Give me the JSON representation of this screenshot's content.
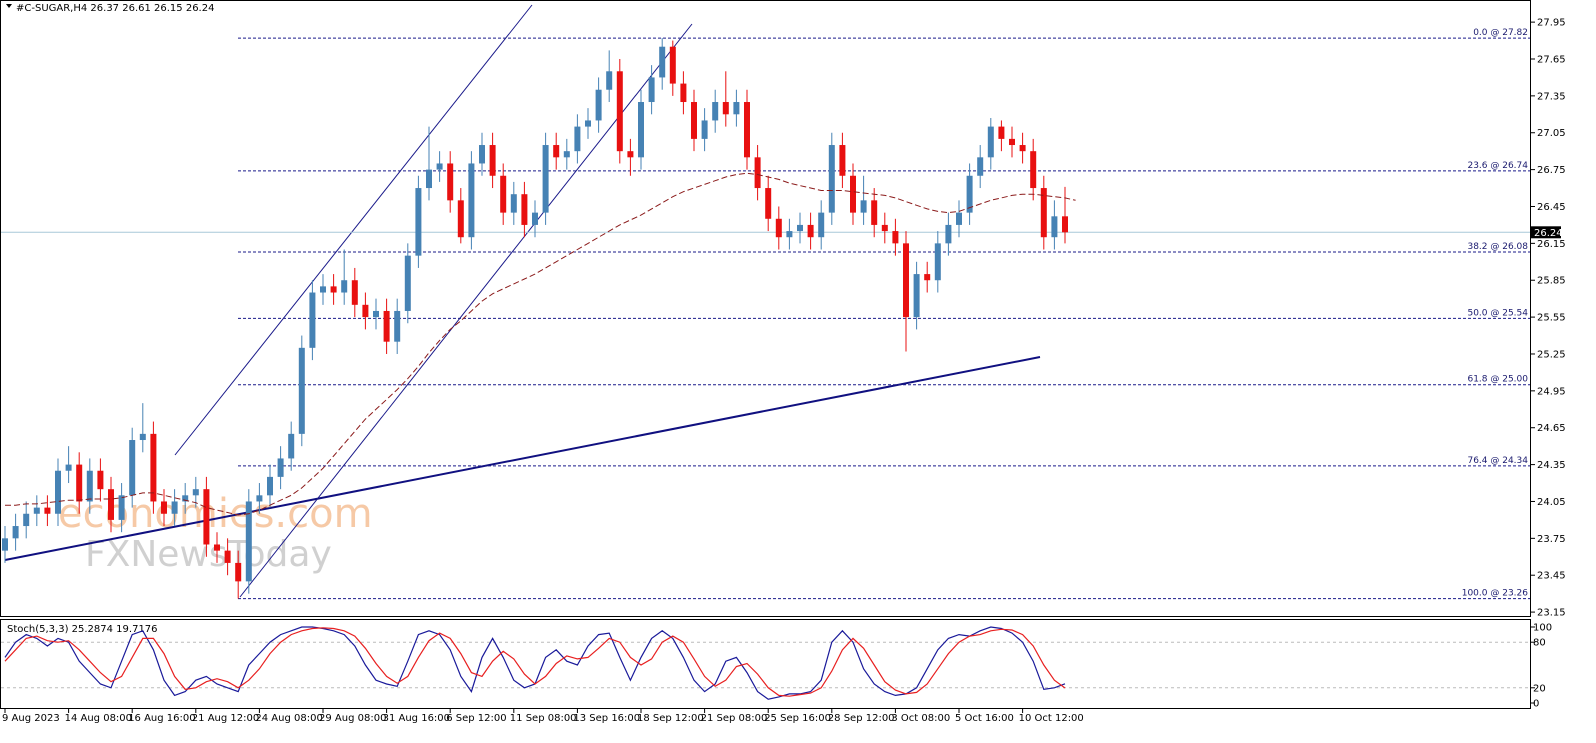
{
  "header": "#C-SUGAR,H4  26.37 26.61 26.15 26.24",
  "watermark": {
    "line1": "economies.com",
    "line2": "FXNewsToday"
  },
  "chart_data": [
    {
      "type": "candlestick",
      "categories": [
        "9 Aug 2023",
        null,
        null,
        null,
        null,
        null,
        "14 Aug 08:00",
        null,
        null,
        null,
        null,
        null,
        "16 Aug 16:00",
        null,
        null,
        null,
        null,
        null,
        "21 Aug 12:00",
        null,
        null,
        null,
        null,
        null,
        "24 Aug 08:00",
        null,
        null,
        null,
        null,
        null,
        "29 Aug 08:00",
        null,
        null,
        null,
        null,
        null,
        "31 Aug 16:00",
        null,
        null,
        null,
        null,
        null,
        "6 Sep 12:00",
        null,
        null,
        null,
        null,
        null,
        "11 Sep 08:00",
        null,
        null,
        null,
        null,
        null,
        "13 Sep 16:00",
        null,
        null,
        null,
        null,
        null,
        "18 Sep 12:00",
        null,
        null,
        null,
        null,
        null,
        "21 Sep 08:00",
        null,
        null,
        null,
        null,
        null,
        "25 Sep 16:00",
        null,
        null,
        null,
        null,
        null,
        "28 Sep 12:00",
        null,
        null,
        null,
        null,
        null,
        "3 Oct 08:00",
        null,
        null,
        null,
        null,
        null,
        "5 Oct 16:00",
        null,
        null,
        null,
        null,
        null,
        "10 Oct 12:00",
        null,
        null,
        null,
        null
      ],
      "open": [
        23.65,
        23.75,
        23.85,
        23.95,
        24.0,
        23.95,
        24.3,
        24.35,
        24.05,
        24.3,
        24.15,
        23.9,
        24.1,
        24.55,
        24.6,
        24.05,
        23.95,
        24.05,
        24.1,
        24.15,
        23.7,
        23.65,
        23.55,
        23.4,
        24.05,
        24.1,
        24.25,
        24.4,
        24.6,
        25.3,
        25.75,
        25.8,
        25.75,
        25.85,
        25.65,
        25.55,
        25.6,
        25.35,
        25.6,
        26.05,
        26.6,
        26.75,
        26.8,
        26.5,
        26.2,
        26.8,
        26.95,
        26.7,
        26.4,
        26.55,
        26.3,
        26.4,
        26.95,
        26.85,
        26.9,
        27.1,
        27.15,
        27.4,
        27.55,
        26.9,
        26.85,
        27.3,
        27.5,
        27.75,
        27.45,
        27.3,
        27.0,
        27.15,
        27.3,
        27.2,
        27.3,
        26.85,
        26.6,
        26.35,
        26.2,
        26.25,
        26.3,
        26.2,
        26.4,
        26.95,
        26.7,
        26.4,
        26.5,
        26.3,
        26.25,
        26.15,
        25.55,
        25.9,
        25.85,
        26.15,
        26.3,
        26.4,
        26.7,
        26.85,
        27.1,
        27.0,
        26.95,
        26.9,
        26.6,
        26.2,
        26.37
      ],
      "high": [
        23.85,
        23.95,
        24.05,
        24.1,
        24.1,
        24.4,
        24.5,
        24.45,
        24.4,
        24.4,
        24.25,
        24.2,
        24.65,
        24.85,
        24.7,
        24.15,
        24.15,
        24.2,
        24.25,
        24.25,
        23.8,
        23.75,
        23.65,
        24.15,
        24.2,
        24.35,
        24.5,
        24.7,
        25.4,
        25.85,
        25.9,
        25.9,
        26.1,
        25.95,
        25.75,
        25.7,
        25.7,
        25.7,
        26.15,
        26.7,
        27.1,
        26.9,
        26.9,
        26.6,
        26.9,
        27.05,
        27.05,
        26.8,
        26.65,
        26.65,
        26.5,
        27.05,
        27.05,
        27.0,
        27.2,
        27.25,
        27.5,
        27.72,
        27.65,
        27.0,
        27.4,
        27.6,
        27.82,
        27.8,
        27.55,
        27.4,
        27.25,
        27.4,
        27.55,
        27.4,
        27.4,
        26.95,
        26.7,
        26.45,
        26.35,
        26.4,
        26.4,
        26.5,
        27.05,
        27.05,
        26.8,
        26.7,
        26.6,
        26.4,
        26.35,
        26.25,
        26.0,
        26.0,
        26.25,
        26.4,
        26.5,
        26.8,
        26.95,
        27.17,
        27.15,
        27.1,
        27.05,
        27.0,
        26.7,
        26.5,
        26.61
      ],
      "low": [
        23.55,
        23.65,
        23.75,
        23.85,
        23.85,
        23.85,
        24.2,
        23.95,
        23.95,
        24.05,
        23.8,
        23.8,
        24.0,
        24.45,
        23.95,
        23.85,
        23.85,
        23.95,
        24.0,
        23.6,
        23.55,
        23.45,
        23.26,
        23.3,
        23.95,
        24.0,
        24.15,
        24.3,
        24.5,
        25.2,
        25.65,
        25.65,
        25.65,
        25.55,
        25.45,
        25.45,
        25.25,
        25.25,
        25.5,
        25.95,
        26.5,
        26.65,
        26.4,
        26.15,
        26.1,
        26.7,
        26.6,
        26.3,
        26.3,
        26.2,
        26.2,
        26.3,
        26.75,
        26.75,
        26.8,
        27.0,
        27.05,
        27.3,
        26.8,
        26.7,
        26.75,
        27.2,
        27.4,
        27.35,
        27.2,
        26.9,
        26.9,
        27.05,
        27.1,
        27.1,
        26.75,
        26.5,
        26.25,
        26.1,
        26.1,
        26.15,
        26.1,
        26.1,
        26.3,
        26.6,
        26.3,
        26.3,
        26.2,
        26.15,
        26.05,
        25.27,
        25.45,
        25.75,
        25.75,
        26.05,
        26.2,
        26.3,
        26.6,
        26.75,
        26.9,
        26.85,
        26.8,
        26.5,
        26.1,
        26.1,
        26.15
      ],
      "close": [
        23.75,
        23.85,
        23.95,
        24.0,
        23.95,
        24.3,
        24.35,
        24.05,
        24.3,
        24.15,
        23.9,
        24.1,
        24.55,
        24.6,
        24.05,
        23.95,
        24.05,
        24.1,
        24.15,
        23.7,
        23.65,
        23.55,
        23.4,
        24.05,
        24.1,
        24.25,
        24.4,
        24.6,
        25.3,
        25.75,
        25.8,
        25.75,
        25.85,
        25.65,
        25.55,
        25.6,
        25.35,
        25.6,
        26.05,
        26.6,
        26.75,
        26.8,
        26.5,
        26.2,
        26.8,
        26.95,
        26.7,
        26.4,
        26.55,
        26.3,
        26.4,
        26.95,
        26.85,
        26.9,
        27.1,
        27.15,
        27.4,
        27.55,
        26.9,
        26.85,
        27.3,
        27.5,
        27.75,
        27.45,
        27.3,
        27.0,
        27.15,
        27.3,
        27.2,
        27.3,
        26.85,
        26.6,
        26.35,
        26.2,
        26.25,
        26.3,
        26.2,
        26.4,
        26.95,
        26.7,
        26.4,
        26.5,
        26.3,
        26.25,
        26.15,
        25.55,
        25.9,
        25.85,
        26.15,
        26.3,
        26.4,
        26.7,
        26.85,
        27.1,
        27.0,
        26.95,
        26.9,
        26.6,
        26.2,
        26.37,
        26.24
      ],
      "ma": [
        24.02,
        24.02,
        24.03,
        24.03,
        24.04,
        24.05,
        24.06,
        24.06,
        24.07,
        24.07,
        24.07,
        24.08,
        24.1,
        24.12,
        24.12,
        24.1,
        24.08,
        24.06,
        24.04,
        24.0,
        23.98,
        23.96,
        23.94,
        23.95,
        23.98,
        24.02,
        24.06,
        24.1,
        24.16,
        24.24,
        24.32,
        24.42,
        24.52,
        24.62,
        24.72,
        24.8,
        24.88,
        24.96,
        25.05,
        25.15,
        25.26,
        25.36,
        25.45,
        25.52,
        25.6,
        25.68,
        25.74,
        25.78,
        25.82,
        25.86,
        25.9,
        25.95,
        26.0,
        26.05,
        26.1,
        26.15,
        26.2,
        26.25,
        26.3,
        26.34,
        26.38,
        26.43,
        26.48,
        26.53,
        26.57,
        26.6,
        26.63,
        26.66,
        26.69,
        26.71,
        26.72,
        26.71,
        26.69,
        26.67,
        26.64,
        26.62,
        26.6,
        26.58,
        26.58,
        26.58,
        26.57,
        26.56,
        26.55,
        26.54,
        26.52,
        26.49,
        26.46,
        26.43,
        26.41,
        26.4,
        26.41,
        26.44,
        26.47,
        26.5,
        26.52,
        26.54,
        26.55,
        26.55,
        26.54,
        26.53,
        26.52,
        26.5
      ],
      "up_color": "#4682b4",
      "down_color": "#e81010",
      "ma_color": "#8b1a1a",
      "current_price": 26.24,
      "fib_levels": [
        {
          "value": 27.82,
          "label": "0.0 @ 27.82"
        },
        {
          "value": 26.74,
          "label": "23.6 @ 26.74"
        },
        {
          "value": 26.08,
          "label": "38.2 @ 26.08"
        },
        {
          "value": 25.54,
          "label": "50.0 @ 25.54"
        },
        {
          "value": 25.0,
          "label": "61.8 @ 25.00"
        },
        {
          "value": 24.34,
          "label": "76.4 @ 24.34"
        },
        {
          "value": 23.26,
          "label": "100.0 @ 23.26"
        }
      ],
      "ylim": [
        23.11,
        28.13
      ],
      "yticks": [
        27.95,
        27.65,
        27.35,
        27.05,
        26.75,
        26.45,
        26.15,
        25.85,
        25.55,
        25.25,
        24.95,
        24.65,
        24.35,
        24.05,
        23.75,
        23.45,
        23.15
      ]
    },
    {
      "type": "line",
      "title": "Stoch(5,3,3) 25.2874 19.7176",
      "series": [
        {
          "color": "#1a1a9a",
          "values": [
            60,
            80,
            90,
            85,
            75,
            85,
            80,
            55,
            40,
            25,
            20,
            55,
            90,
            95,
            70,
            30,
            10,
            15,
            30,
            35,
            25,
            20,
            15,
            50,
            65,
            80,
            90,
            95,
            100,
            100,
            98,
            95,
            90,
            75,
            50,
            30,
            25,
            22,
            55,
            90,
            95,
            90,
            70,
            35,
            15,
            60,
            85,
            60,
            30,
            20,
            25,
            60,
            70,
            55,
            50,
            75,
            90,
            92,
            60,
            30,
            60,
            85,
            95,
            85,
            60,
            30,
            15,
            25,
            55,
            60,
            40,
            15,
            5,
            8,
            12,
            12,
            15,
            30,
            80,
            95,
            80,
            45,
            25,
            15,
            10,
            12,
            20,
            45,
            70,
            85,
            90,
            88,
            95,
            100,
            98,
            92,
            80,
            55,
            18,
            20,
            25.2874
          ]
        },
        {
          "color": "#e82020",
          "values": [
            55,
            70,
            85,
            88,
            82,
            80,
            82,
            70,
            55,
            40,
            28,
            35,
            60,
            85,
            85,
            65,
            35,
            18,
            20,
            28,
            32,
            28,
            20,
            30,
            45,
            65,
            80,
            90,
            95,
            98,
            99,
            98,
            95,
            88,
            72,
            52,
            35,
            26,
            35,
            60,
            82,
            92,
            85,
            65,
            40,
            35,
            55,
            68,
            58,
            38,
            25,
            35,
            52,
            62,
            58,
            60,
            72,
            85,
            80,
            60,
            50,
            58,
            80,
            88,
            80,
            58,
            35,
            22,
            30,
            48,
            52,
            38,
            20,
            10,
            9,
            11,
            13,
            20,
            42,
            70,
            85,
            72,
            50,
            28,
            17,
            12,
            14,
            25,
            45,
            65,
            80,
            88,
            90,
            95,
            97,
            96,
            90,
            75,
            50,
            30,
            19.7176
          ]
        }
      ],
      "ylim": [
        -7.9,
        109.2
      ],
      "yticks": [
        100,
        80,
        20,
        0
      ],
      "levels": [
        80,
        20
      ]
    }
  ]
}
